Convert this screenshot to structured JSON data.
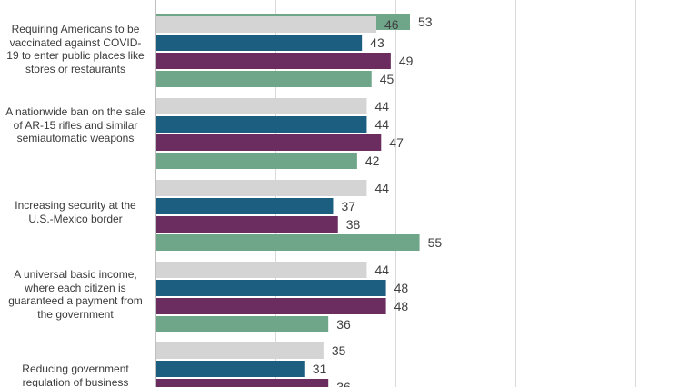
{
  "chart_data": {
    "type": "bar",
    "orientation": "horizontal",
    "categories": [
      "",
      "Requiring Americans to be vaccinated against COVID-19 to enter public places like stores or restaurants",
      "A nationwide ban on the sale of AR-15 rifles and similar semiautomatic weapons",
      "Increasing security at the U.S.-Mexico border",
      "A universal basic income, where each citizen is guaranteed a payment from the government",
      "Reducing government regulation of business"
    ],
    "series": [
      {
        "color": "#d4d4d4",
        "values": [
          null,
          46,
          44,
          44,
          44,
          35
        ]
      },
      {
        "color": "#1b5e80",
        "values": [
          null,
          43,
          44,
          37,
          48,
          31
        ]
      },
      {
        "color": "#6b2d5f",
        "values": [
          null,
          49,
          47,
          38,
          48,
          36
        ]
      },
      {
        "color": "#6fa588",
        "values": [
          53,
          45,
          42,
          55,
          36,
          null
        ]
      }
    ],
    "xlim": [
      0,
      100
    ],
    "grid": true,
    "data_labels": true
  }
}
